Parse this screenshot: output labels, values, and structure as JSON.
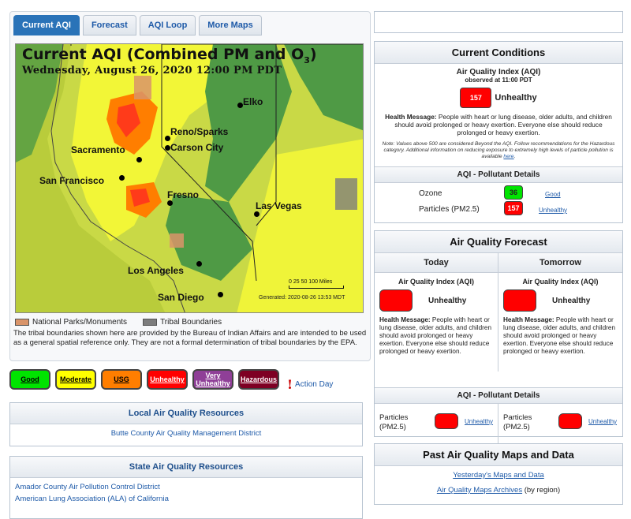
{
  "tabs": [
    "Current AQI",
    "Forecast",
    "AQI Loop",
    "More Maps"
  ],
  "map": {
    "title_main": "Current AQI (Combined PM and O",
    "title_sub": "3",
    "title_close": ")",
    "datetime": "Wednesday, August 26, 2020 12:00 PM PDT",
    "cities": [
      "Elko",
      "Reno/Sparks",
      "Carson City",
      "Sacramento",
      "San Francisco",
      "Fresno",
      "Las Vegas",
      "Los Angeles",
      "San Diego"
    ],
    "scale": "0 25 50  100 Miles",
    "generated": "Generated: 2020-08-26 13:53 MDT"
  },
  "legend": {
    "parks": "National Parks/Monuments",
    "tribal": "Tribal Boundaries",
    "parks_color": "#d9946a",
    "tribal_color": "#7d7d7d"
  },
  "tribal_note": "The tribal boundaries shown here are provided by the Bureau of Indian Affairs and are intended to be used as a general spatial reference only. They are not a formal determination of tribal boundaries by the EPA.",
  "aqi_levels": [
    {
      "label": "Good",
      "color": "#00e400",
      "text": "#000"
    },
    {
      "label": "Moderate",
      "color": "#ffff00",
      "text": "#000"
    },
    {
      "label": "USG",
      "color": "#ff7e00",
      "text": "#000"
    },
    {
      "label": "Unhealthy",
      "color": "#ff0000",
      "text": "#fff"
    },
    {
      "label": "Very Unhealthy",
      "color": "#8f3f97",
      "text": "#fff"
    },
    {
      "label": "Hazardous",
      "color": "#7e0023",
      "text": "#fff"
    }
  ],
  "action_day": "Action Day",
  "local": {
    "title": "Local Air Quality Resources",
    "items": [
      "Butte County Air Quality Management District"
    ]
  },
  "state": {
    "title": "State Air Quality Resources",
    "items": [
      "Amador County Air Pollution Control District",
      "American Lung Association (ALA) of California"
    ]
  },
  "current": {
    "title": "Current Conditions",
    "aqi_label": "Air Quality Index (AQI)",
    "observed": "observed at 11:00 PDT",
    "aqi_value": "157",
    "aqi_category": "Unhealthy",
    "health_label": "Health Message:",
    "health_text": "People with heart or lung disease, older adults, and children should avoid prolonged or heavy exertion. Everyone else should reduce prolonged or heavy exertion.",
    "note": "Note: Values above 500 are considered Beyond the AQI. Follow recommendations for the Hazardous category. Additional information on reducing exposure to extremely high levels of particle pollution is available",
    "note_link": "here",
    "pollutant_title": "AQI - Pollutant Details",
    "pollutants": [
      {
        "name": "Ozone",
        "value": "36",
        "category": "Good",
        "color": "#00e400"
      },
      {
        "name": "Particles (PM2.5)",
        "value": "157",
        "category": "Unhealthy",
        "color": "#ff0000"
      }
    ]
  },
  "forecast": {
    "title": "Air Quality Forecast",
    "days": [
      {
        "name": "Today",
        "aqi_label": "Air Quality Index (AQI)",
        "category": "Unhealthy",
        "health_label": "Health Message:",
        "health_text": "People with heart or lung disease, older adults, and children should avoid prolonged or heavy exertion. Everyone else should reduce prolonged or heavy exertion.",
        "pollutant": "Particles (PM2.5)",
        "pollutant_category": "Unhealthy"
      },
      {
        "name": "Tomorrow",
        "aqi_label": "Air Quality Index (AQI)",
        "category": "Unhealthy",
        "health_label": "Health Message:",
        "health_text": "People with heart or lung disease, older adults, and children should avoid prolonged or heavy exertion. Everyone else should reduce prolonged or heavy exertion.",
        "pollutant": "Particles (PM2.5)",
        "pollutant_category": "Unhealthy"
      }
    ],
    "pollutant_title": "AQI - Pollutant Details"
  },
  "past": {
    "title": "Past Air Quality Maps and Data",
    "link1": "Yesterday's Maps and Data",
    "link2": "Air Quality Maps Archives",
    "link2_suffix": "(by region)"
  }
}
